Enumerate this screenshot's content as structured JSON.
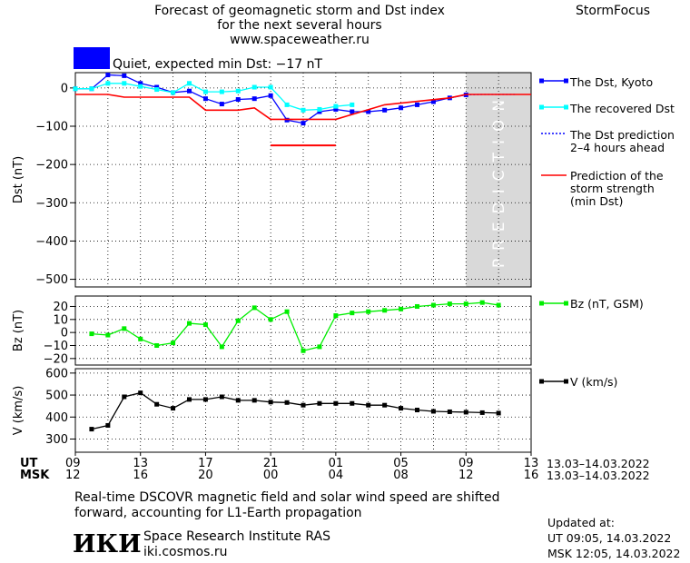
{
  "header": {
    "title_line1": "Forecast of geomagnetic storm and Dst index",
    "title_line2": "for the next several hours",
    "website": "www.spaceweather.ru",
    "brand": "StormFocus"
  },
  "status": {
    "text": "Quiet, expected min Dst: −17 nT",
    "color": "#0000ff"
  },
  "prediction_label": "PREDICTION",
  "footer": {
    "note_line1": "Real-time DSCOVR magnetic field and solar wind speed are shifted",
    "note_line2": "forward, accounting for L1-Earth propagation",
    "institute": "Space Research Institute RAS",
    "institute_site": "iki.cosmos.ru",
    "logo_text": "ИКИ",
    "updated_label": "Updated at:",
    "updated_ut": "UT   09:05, 14.03.2022",
    "updated_msk": "MSK 12:05, 14.03.2022"
  },
  "chart_data": {
    "type": "line",
    "time_axis": {
      "ut_label": "UT",
      "msk_label": "MSK",
      "ut_ticks": [
        "09",
        "13",
        "17",
        "21",
        "01",
        "05",
        "09",
        "13"
      ],
      "msk_ticks": [
        "12",
        "16",
        "20",
        "00",
        "04",
        "08",
        "12",
        "16"
      ],
      "date_range": "13.03–14.03.2022",
      "range_hours": [
        0,
        28
      ],
      "prediction_from_hour": 24
    },
    "panels": [
      {
        "name": "dst",
        "ylabel": "Dst (nT)",
        "ylim": [
          -520,
          40
        ],
        "yticks": [
          0,
          -100,
          -200,
          -300,
          -400,
          -500
        ],
        "ytick_labels": [
          "0",
          "−100",
          "−200",
          "−300",
          "−400",
          "−500"
        ],
        "series": [
          {
            "name": "The Dst, Kyoto",
            "color": "#0000ff",
            "style": "line-square",
            "x": [
              0,
              1,
              2,
              3,
              4,
              5,
              6,
              7,
              8,
              9,
              10,
              11,
              12,
              13,
              14,
              15,
              16,
              17,
              18,
              19,
              20,
              21,
              22,
              23,
              24
            ],
            "y": [
              -2,
              -2,
              34,
              32,
              12,
              2,
              -12,
              -8,
              -28,
              -42,
              -30,
              -28,
              -20,
              -84,
              -92,
              -62,
              -56,
              -62,
              -62,
              -58,
              -52,
              -44,
              -36,
              -26,
              -18
            ]
          },
          {
            "name": "The recovered Dst",
            "color": "#00ffff",
            "style": "line-square",
            "x": [
              0,
              1,
              2,
              3,
              4,
              5,
              6,
              7,
              8,
              9,
              10,
              11,
              12,
              13,
              14,
              15,
              16,
              17
            ],
            "y": [
              -2,
              -2,
              12,
              12,
              4,
              -4,
              -12,
              12,
              -10,
              -10,
              -8,
              2,
              2,
              -44,
              -58,
              -56,
              -48,
              -44
            ]
          },
          {
            "name": "The Dst prediction 2–4 hours ahead",
            "color": "#0000ff",
            "style": "dotted",
            "x": [
              24,
              25,
              26,
              27
            ],
            "y": [
              -18,
              -17,
              -17,
              -17
            ]
          },
          {
            "name": "Prediction of the storm strength (min Dst)",
            "color": "#ff0000",
            "style": "step",
            "x": [
              0,
              2,
              3,
              7,
              8,
              10,
              11,
              12,
              16,
              19,
              23,
              24,
              25,
              28
            ],
            "y": [
              -17,
              -17,
              -24,
              -24,
              -58,
              -58,
              -52,
              -82,
              -82,
              -44,
              -26,
              -17,
              -17,
              -17
            ]
          }
        ],
        "annotations": [
          {
            "type": "hline",
            "color": "#ff0000",
            "x": [
              12,
              16
            ],
            "y": -150
          }
        ]
      },
      {
        "name": "bz",
        "ylabel": "Bz (nT)",
        "ylim": [
          -25,
          28
        ],
        "yticks": [
          20,
          10,
          0,
          -10,
          -20
        ],
        "ytick_labels": [
          "20",
          "10",
          "0",
          "−10",
          "−20"
        ],
        "series": [
          {
            "name": "Bz (nT, GSM)",
            "color": "#00ee00",
            "style": "line-square",
            "x": [
              1,
              2,
              3,
              4,
              5,
              6,
              7,
              8,
              9,
              10,
              11,
              12,
              13,
              14,
              15,
              16,
              17,
              18,
              19,
              20,
              21,
              22,
              23,
              24,
              25,
              26,
              27,
              28
            ],
            "y": [
              -1,
              -2,
              3,
              -5,
              -10,
              -8,
              7,
              6,
              -11,
              9,
              19,
              10,
              16,
              -14,
              -11,
              13,
              15,
              16,
              17,
              18,
              20,
              21,
              22,
              22,
              23,
              21,
              null,
              null
            ]
          }
        ]
      },
      {
        "name": "v",
        "ylabel": "V (km/s)",
        "ylim": [
          240,
          620
        ],
        "yticks": [
          600,
          500,
          400,
          300
        ],
        "ytick_labels": [
          "600",
          "500",
          "400",
          "300"
        ],
        "series": [
          {
            "name": "V (km/s)",
            "color": "#000000",
            "style": "line-square",
            "x": [
              1,
              2,
              3,
              4,
              5,
              6,
              7,
              8,
              9,
              10,
              11,
              12,
              13,
              14,
              15,
              16,
              17,
              18,
              19,
              20,
              21,
              22,
              23,
              24,
              25,
              26
            ],
            "y": [
              345,
              362,
              492,
              510,
              458,
              440,
              480,
              480,
              492,
              476,
              476,
              468,
              466,
              454,
              462,
              462,
              462,
              454,
              454,
              440,
              432,
              426,
              424,
              422,
              420,
              418
            ]
          }
        ]
      }
    ]
  }
}
